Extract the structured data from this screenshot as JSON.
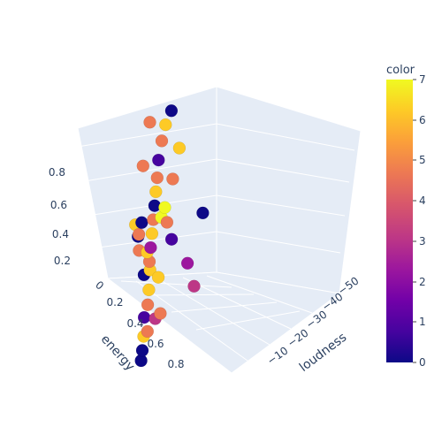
{
  "chart_data": {
    "type": "scatter",
    "subtype": "3d",
    "axes": {
      "x": {
        "label": "energy",
        "ticks": [
          "0",
          "0.2",
          "0.4",
          "0.6",
          "0.8"
        ],
        "range": [
          0,
          1
        ]
      },
      "y": {
        "label": "loudness",
        "ticks": [
          "−10",
          "−20",
          "−30",
          "−40",
          "−50"
        ],
        "range": [
          -60,
          0
        ]
      },
      "z": {
        "label": "",
        "ticks": [
          "0.2",
          "0.4",
          "0.6",
          "0.8"
        ],
        "range": [
          0,
          1
        ]
      }
    },
    "color_axis": {
      "title": "color",
      "range": [
        0,
        7
      ],
      "ticks": [
        "0",
        "1",
        "2",
        "3",
        "4",
        "5",
        "6",
        "7"
      ],
      "colorscale": [
        "#0d0887",
        "#46039f",
        "#7201a8",
        "#9c179e",
        "#bd3786",
        "#d8576b",
        "#ed7953",
        "#fb9f3a",
        "#fdca26",
        "#f0f921"
      ]
    },
    "points": [
      {
        "energy": 0.85,
        "loudness": -5,
        "z": 0.05,
        "color": 0
      },
      {
        "energy": 0.8,
        "loudness": -6,
        "z": 0.1,
        "color": 6
      },
      {
        "energy": 0.78,
        "loudness": -8,
        "z": 0.12,
        "color": 5
      },
      {
        "energy": 0.7,
        "loudness": -7,
        "z": 0.15,
        "color": 1
      },
      {
        "energy": 0.66,
        "loudness": -9,
        "z": 0.2,
        "color": 5
      },
      {
        "energy": 0.6,
        "loudness": -10,
        "z": 0.25,
        "color": 6
      },
      {
        "energy": 0.55,
        "loudness": -8,
        "z": 0.3,
        "color": 0
      },
      {
        "energy": 0.5,
        "loudness": -11,
        "z": 0.35,
        "color": 5
      },
      {
        "energy": 0.45,
        "loudness": -12,
        "z": 0.4,
        "color": 2
      },
      {
        "energy": 0.4,
        "loudness": -13,
        "z": 0.45,
        "color": 6
      },
      {
        "energy": 0.35,
        "loudness": -14,
        "z": 0.5,
        "color": 5
      },
      {
        "energy": 0.3,
        "loudness": -15,
        "z": 0.55,
        "color": 0
      },
      {
        "energy": 0.25,
        "loudness": -16,
        "z": 0.6,
        "color": 6
      },
      {
        "energy": 0.2,
        "loudness": -17,
        "z": 0.65,
        "color": 5
      },
      {
        "energy": 0.15,
        "loudness": -18,
        "z": 0.72,
        "color": 1
      },
      {
        "energy": 0.1,
        "loudness": -20,
        "z": 0.8,
        "color": 5
      },
      {
        "energy": 0.08,
        "loudness": -22,
        "z": 0.88,
        "color": 6
      },
      {
        "energy": 0.06,
        "loudness": -25,
        "z": 0.95,
        "color": 0
      },
      {
        "energy": 0.3,
        "loudness": -20,
        "z": 0.55,
        "color": 7
      },
      {
        "energy": 0.35,
        "loudness": -18,
        "z": 0.52,
        "color": 7
      },
      {
        "energy": 0.9,
        "loudness": -4,
        "z": 0.02,
        "color": 0
      },
      {
        "energy": 0.75,
        "loudness": -12,
        "z": 0.18,
        "color": 3
      },
      {
        "energy": 0.5,
        "loudness": -6,
        "z": 0.4,
        "color": 5
      },
      {
        "energy": 0.55,
        "loudness": -15,
        "z": 0.3,
        "color": 6
      },
      {
        "energy": 0.4,
        "loudness": -8,
        "z": 0.5,
        "color": 0
      },
      {
        "energy": 0.28,
        "loudness": -24,
        "z": 0.7,
        "color": 5
      },
      {
        "energy": 0.18,
        "loudness": -28,
        "z": 0.82,
        "color": 6
      },
      {
        "energy": 0.12,
        "loudness": -14,
        "z": 0.9,
        "color": 5
      },
      {
        "energy": 0.62,
        "loudness": -5,
        "z": 0.55,
        "color": 5
      },
      {
        "energy": 0.66,
        "loudness": -3,
        "z": 0.62,
        "color": 6
      },
      {
        "energy": 0.7,
        "loudness": -4,
        "z": 0.58,
        "color": 0
      },
      {
        "energy": 0.45,
        "loudness": -30,
        "z": 0.35,
        "color": 2
      },
      {
        "energy": 0.2,
        "loudness": -35,
        "z": 0.1,
        "color": 3
      },
      {
        "energy": 0.58,
        "loudness": -19,
        "z": 0.62,
        "color": 5
      },
      {
        "energy": 0.22,
        "loudness": -12,
        "z": 0.25,
        "color": 6
      },
      {
        "energy": 0.1,
        "loudness": -40,
        "z": 0.45,
        "color": 0
      },
      {
        "energy": 0.35,
        "loudness": -9,
        "z": 0.78,
        "color": 5
      },
      {
        "energy": 0.68,
        "loudness": -10,
        "z": 0.4,
        "color": 6
      },
      {
        "energy": 0.48,
        "loudness": -22,
        "z": 0.48,
        "color": 1
      },
      {
        "energy": 0.82,
        "loudness": -14,
        "z": 0.25,
        "color": 5
      }
    ]
  }
}
